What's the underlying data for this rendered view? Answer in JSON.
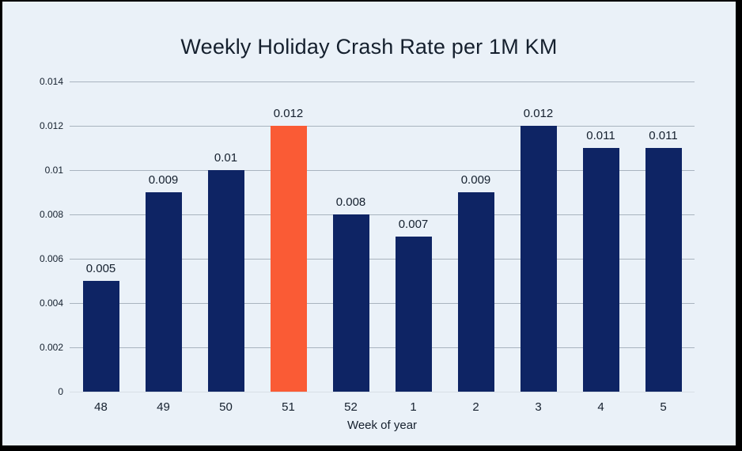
{
  "frame": {
    "background_color": "#eaf1f8",
    "border_color": "#000000"
  },
  "text_color": "#15202e",
  "grid_color": "#a9b4bf",
  "baseline_color": "#d7dee5",
  "chart_data": {
    "type": "bar",
    "title": "Weekly Holiday Crash Rate per 1M KM",
    "xlabel": "Week of year",
    "ylabel": "",
    "categories": [
      "48",
      "49",
      "50",
      "51",
      "52",
      "1",
      "2",
      "3",
      "4",
      "5"
    ],
    "values": [
      0.005,
      0.009,
      0.01,
      0.012,
      0.008,
      0.007,
      0.009,
      0.012,
      0.011,
      0.011
    ],
    "value_labels": [
      "0.005",
      "0.009",
      "0.01",
      "0.012",
      "0.008",
      "0.007",
      "0.009",
      "0.012",
      "0.011",
      "0.011"
    ],
    "ylim": [
      0,
      0.014
    ],
    "yticks": [
      0,
      0.002,
      0.004,
      0.006,
      0.008,
      0.01,
      0.012,
      0.014
    ],
    "ytick_labels": [
      "0",
      "0.002",
      "0.004",
      "0.006",
      "0.008",
      "0.01",
      "0.012",
      "0.014"
    ],
    "grid": true,
    "legend": "none",
    "bar_color": "#0e2464",
    "highlight_color": "#fa5b35",
    "highlight_index": 3
  }
}
